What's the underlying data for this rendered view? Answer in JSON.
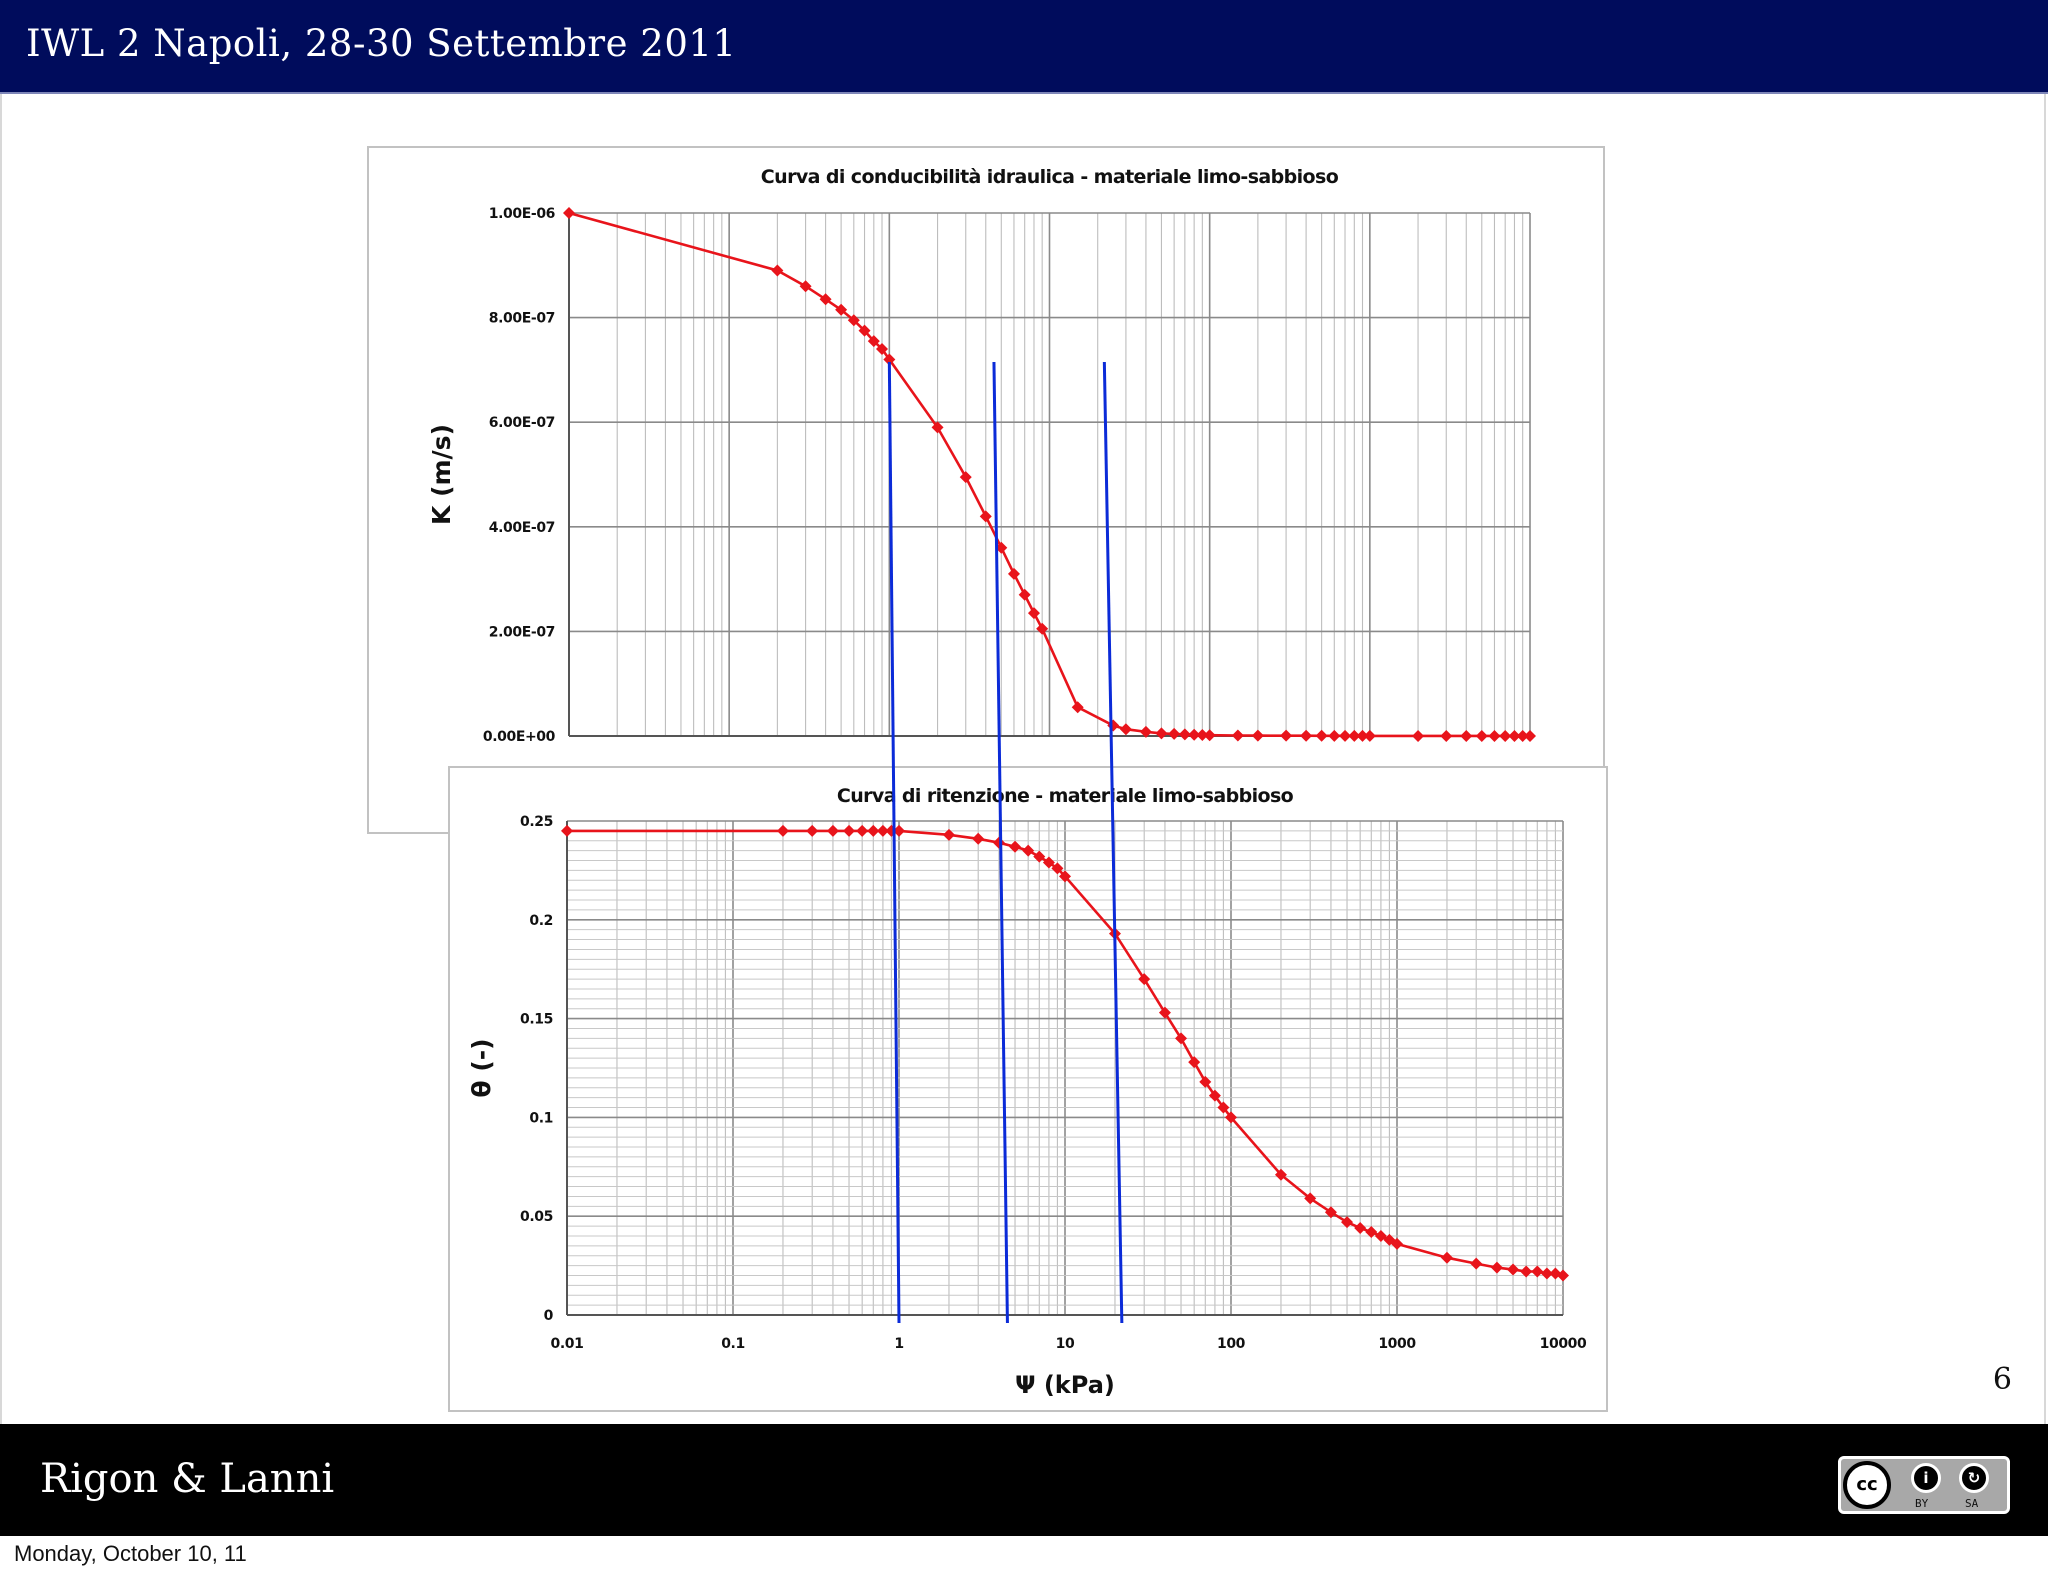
{
  "header": {
    "title": "IWL 2 Napoli, 28-30 Settembre 2011"
  },
  "footer": {
    "authors": "Rigon & Lanni",
    "license": {
      "logo": "cc",
      "by": "BY",
      "sa": "SA"
    }
  },
  "page_number": "6",
  "date": "Monday, October 10, 11",
  "colors": {
    "header_bg": "#000c5c",
    "series": "#e8141b",
    "marker_lines": "#0b2bd8"
  },
  "chart_data": [
    {
      "type": "line",
      "title": "Curva di conducibilità idraulica - materiale limo-sabbioso",
      "ylabel": "K (m/s)",
      "xlabel": "",
      "x_scale": "log",
      "xlim": [
        0.01,
        10000
      ],
      "ylim": [
        0,
        1e-06
      ],
      "y_tick_labels": [
        "0.00E+00",
        "2.00E-07",
        "4.00E-07",
        "6.00E-07",
        "8.00E-07",
        "1.00E-06"
      ],
      "grid": true,
      "series": [
        {
          "x": [
            0.01,
            0.2,
            0.3,
            0.4,
            0.5,
            0.6,
            0.7,
            0.8,
            0.9,
            1.0,
            2.0,
            3.0,
            4.0,
            5.0,
            6.0,
            7.0,
            8.0,
            9.0,
            15,
            25,
            30,
            40,
            50,
            60,
            70,
            80,
            90,
            100,
            150,
            200,
            300,
            400,
            500,
            600,
            700,
            800,
            900,
            1000,
            2000,
            3000,
            4000,
            5000,
            6000,
            7000,
            8000,
            9000,
            10000
          ],
          "y": [
            1e-06,
            8.9e-07,
            8.6e-07,
            8.35e-07,
            8.15e-07,
            7.95e-07,
            7.75e-07,
            7.55e-07,
            7.4e-07,
            7.2e-07,
            5.9e-07,
            4.95e-07,
            4.2e-07,
            3.6e-07,
            3.1e-07,
            2.7e-07,
            2.35e-07,
            2.05e-07,
            5.5e-08,
            2e-08,
            1.3e-08,
            8e-09,
            5e-09,
            4e-09,
            3e-09,
            2.5e-09,
            2e-09,
            1.5e-09,
            1e-09,
            8e-10,
            6e-10,
            5e-10,
            4e-10,
            3.5e-10,
            3e-10,
            2.5e-10,
            2e-10,
            2e-10,
            1e-10,
            1e-10,
            1e-10,
            1e-10,
            1e-10,
            1e-10,
            1e-10,
            1e-10,
            1e-10
          ]
        }
      ]
    },
    {
      "type": "line",
      "title": "Curva di ritenzione - materiale limo-sabbioso",
      "ylabel": "θ (-)",
      "xlabel": "Ψ (kPa)",
      "x_scale": "log",
      "xlim": [
        0.01,
        10000
      ],
      "ylim": [
        0,
        0.25
      ],
      "x_tick_labels": [
        "0.01",
        "0.1",
        "1",
        "10",
        "100",
        "1000",
        "10000"
      ],
      "y_tick_labels": [
        "0",
        "0.05",
        "0.1",
        "0.15",
        "0.2",
        "0.25"
      ],
      "grid": true,
      "series": [
        {
          "x": [
            0.01,
            0.2,
            0.3,
            0.4,
            0.5,
            0.6,
            0.7,
            0.8,
            0.9,
            1.0,
            2.0,
            3.0,
            4.0,
            5.0,
            6.0,
            7.0,
            8.0,
            9.0,
            10,
            20,
            30,
            40,
            50,
            60,
            70,
            80,
            90,
            100,
            200,
            300,
            400,
            500,
            600,
            700,
            800,
            900,
            1000,
            2000,
            3000,
            4000,
            5000,
            6000,
            7000,
            8000,
            9000,
            10000
          ],
          "y": [
            0.245,
            0.245,
            0.245,
            0.245,
            0.245,
            0.245,
            0.245,
            0.245,
            0.245,
            0.245,
            0.243,
            0.241,
            0.239,
            0.237,
            0.235,
            0.232,
            0.229,
            0.226,
            0.222,
            0.193,
            0.17,
            0.153,
            0.14,
            0.128,
            0.118,
            0.111,
            0.105,
            0.1,
            0.071,
            0.059,
            0.052,
            0.047,
            0.044,
            0.042,
            0.04,
            0.038,
            0.036,
            0.029,
            0.026,
            0.024,
            0.023,
            0.022,
            0.022,
            0.021,
            0.021,
            0.02
          ]
        }
      ]
    }
  ],
  "marker_lines": {
    "x": [
      1.0,
      4.5,
      22
    ]
  }
}
